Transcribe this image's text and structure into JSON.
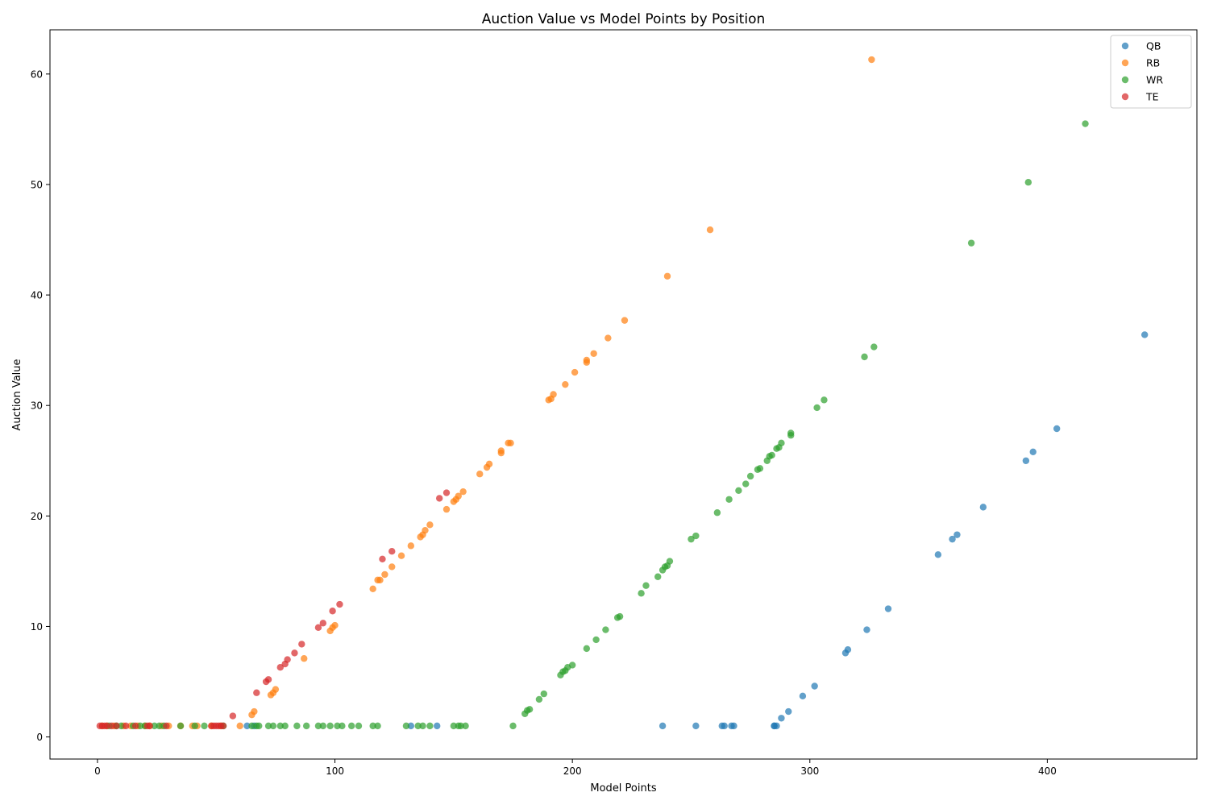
{
  "chart_data": {
    "type": "scatter",
    "title": "Auction Value vs Model Points by Position",
    "xlabel": "Model Points",
    "ylabel": "Auction Value",
    "xlim": [
      -20,
      463
    ],
    "ylim": [
      -2,
      64
    ],
    "xticks": [
      0,
      100,
      200,
      300,
      400
    ],
    "yticks": [
      0,
      10,
      20,
      30,
      40,
      50,
      60
    ],
    "grid": false,
    "legend_position": "top-right",
    "marker": "circle",
    "marker_alpha": 0.7,
    "series": [
      {
        "name": "QB",
        "color": "#1f77b4",
        "points": [
          [
            63,
            1
          ],
          [
            66,
            1
          ],
          [
            132,
            1
          ],
          [
            143,
            1
          ],
          [
            238,
            1
          ],
          [
            252,
            1
          ],
          [
            263,
            1
          ],
          [
            264,
            1
          ],
          [
            267,
            1
          ],
          [
            268,
            1
          ],
          [
            285,
            1
          ],
          [
            285,
            1
          ],
          [
            286,
            1
          ],
          [
            288,
            1.7
          ],
          [
            291,
            2.3
          ],
          [
            297,
            3.7
          ],
          [
            302,
            4.6
          ],
          [
            315,
            7.6
          ],
          [
            316,
            7.9
          ],
          [
            324,
            9.7
          ],
          [
            333,
            11.6
          ],
          [
            354,
            16.5
          ],
          [
            360,
            17.9
          ],
          [
            362,
            18.3
          ],
          [
            373,
            20.8
          ],
          [
            391,
            25.0
          ],
          [
            394,
            25.8
          ],
          [
            404,
            27.9
          ],
          [
            441,
            36.4
          ]
        ]
      },
      {
        "name": "RB",
        "color": "#ff7f0e",
        "points": [
          [
            2,
            1
          ],
          [
            4,
            1
          ],
          [
            7,
            1
          ],
          [
            11,
            1
          ],
          [
            14,
            1
          ],
          [
            17,
            1
          ],
          [
            20,
            1
          ],
          [
            22,
            1
          ],
          [
            27,
            1
          ],
          [
            30,
            1
          ],
          [
            35,
            1
          ],
          [
            40,
            1
          ],
          [
            42,
            1
          ],
          [
            48,
            1
          ],
          [
            52,
            1
          ],
          [
            60,
            1
          ],
          [
            65,
            2.0
          ],
          [
            66,
            2.3
          ],
          [
            73,
            3.8
          ],
          [
            74,
            4.0
          ],
          [
            75,
            4.3
          ],
          [
            87,
            7.1
          ],
          [
            98,
            9.6
          ],
          [
            99,
            9.9
          ],
          [
            100,
            10.1
          ],
          [
            116,
            13.4
          ],
          [
            118,
            14.2
          ],
          [
            119,
            14.2
          ],
          [
            121,
            14.7
          ],
          [
            124,
            15.4
          ],
          [
            128,
            16.4
          ],
          [
            132,
            17.3
          ],
          [
            136,
            18.1
          ],
          [
            137,
            18.3
          ],
          [
            138,
            18.7
          ],
          [
            140,
            19.2
          ],
          [
            147,
            20.6
          ],
          [
            150,
            21.3
          ],
          [
            151,
            21.5
          ],
          [
            152,
            21.8
          ],
          [
            154,
            22.2
          ],
          [
            161,
            23.8
          ],
          [
            164,
            24.4
          ],
          [
            165,
            24.7
          ],
          [
            170,
            25.7
          ],
          [
            170,
            25.9
          ],
          [
            173,
            26.6
          ],
          [
            174,
            26.6
          ],
          [
            190,
            30.5
          ],
          [
            191,
            30.6
          ],
          [
            192,
            31.0
          ],
          [
            197,
            31.9
          ],
          [
            201,
            33.0
          ],
          [
            206,
            33.9
          ],
          [
            206,
            34.1
          ],
          [
            209,
            34.7
          ],
          [
            215,
            36.1
          ],
          [
            222,
            37.7
          ],
          [
            240,
            41.7
          ],
          [
            258,
            45.9
          ],
          [
            326,
            61.3
          ]
        ]
      },
      {
        "name": "WR",
        "color": "#2ca02c",
        "points": [
          [
            5,
            1
          ],
          [
            8,
            1
          ],
          [
            10,
            1
          ],
          [
            15,
            1
          ],
          [
            18,
            1
          ],
          [
            20,
            1
          ],
          [
            24,
            1
          ],
          [
            26,
            1
          ],
          [
            28,
            1
          ],
          [
            35,
            1
          ],
          [
            41,
            1
          ],
          [
            45,
            1
          ],
          [
            53,
            1
          ],
          [
            65,
            1
          ],
          [
            67,
            1
          ],
          [
            68,
            1
          ],
          [
            72,
            1
          ],
          [
            74,
            1
          ],
          [
            77,
            1
          ],
          [
            79,
            1
          ],
          [
            84,
            1
          ],
          [
            88,
            1
          ],
          [
            93,
            1
          ],
          [
            95,
            1
          ],
          [
            98,
            1
          ],
          [
            101,
            1
          ],
          [
            103,
            1
          ],
          [
            107,
            1
          ],
          [
            110,
            1
          ],
          [
            116,
            1
          ],
          [
            118,
            1
          ],
          [
            130,
            1
          ],
          [
            135,
            1
          ],
          [
            137,
            1
          ],
          [
            140,
            1
          ],
          [
            150,
            1
          ],
          [
            152,
            1
          ],
          [
            153,
            1
          ],
          [
            155,
            1
          ],
          [
            175,
            1
          ],
          [
            180,
            2.1
          ],
          [
            181,
            2.4
          ],
          [
            182,
            2.5
          ],
          [
            186,
            3.4
          ],
          [
            188,
            3.9
          ],
          [
            195,
            5.6
          ],
          [
            196,
            5.9
          ],
          [
            197,
            6.0
          ],
          [
            198,
            6.3
          ],
          [
            200,
            6.5
          ],
          [
            206,
            8.0
          ],
          [
            210,
            8.8
          ],
          [
            214,
            9.7
          ],
          [
            219,
            10.8
          ],
          [
            220,
            10.9
          ],
          [
            229,
            13.0
          ],
          [
            231,
            13.7
          ],
          [
            236,
            14.5
          ],
          [
            238,
            15.1
          ],
          [
            239,
            15.4
          ],
          [
            240,
            15.5
          ],
          [
            241,
            15.9
          ],
          [
            250,
            17.9
          ],
          [
            252,
            18.2
          ],
          [
            261,
            20.3
          ],
          [
            266,
            21.5
          ],
          [
            270,
            22.3
          ],
          [
            273,
            22.9
          ],
          [
            275,
            23.6
          ],
          [
            278,
            24.2
          ],
          [
            279,
            24.3
          ],
          [
            282,
            25.0
          ],
          [
            283,
            25.4
          ],
          [
            284,
            25.5
          ],
          [
            286,
            26.1
          ],
          [
            287,
            26.2
          ],
          [
            288,
            26.6
          ],
          [
            292,
            27.3
          ],
          [
            292,
            27.5
          ],
          [
            303,
            29.8
          ],
          [
            306,
            30.5
          ],
          [
            323,
            34.4
          ],
          [
            327,
            35.3
          ],
          [
            368,
            44.7
          ],
          [
            392,
            50.2
          ],
          [
            416,
            55.5
          ]
        ]
      },
      {
        "name": "TE",
        "color": "#d62728",
        "points": [
          [
            1,
            1
          ],
          [
            2,
            1
          ],
          [
            3,
            1
          ],
          [
            4,
            1
          ],
          [
            6,
            1
          ],
          [
            8,
            1
          ],
          [
            12,
            1
          ],
          [
            16,
            1
          ],
          [
            21,
            1
          ],
          [
            22,
            1
          ],
          [
            29,
            1
          ],
          [
            48,
            1
          ],
          [
            49,
            1
          ],
          [
            50,
            1
          ],
          [
            51,
            1
          ],
          [
            52,
            1
          ],
          [
            53,
            1
          ],
          [
            57,
            1.9
          ],
          [
            67,
            4.0
          ],
          [
            71,
            5.0
          ],
          [
            72,
            5.2
          ],
          [
            77,
            6.3
          ],
          [
            79,
            6.6
          ],
          [
            80,
            7.0
          ],
          [
            83,
            7.6
          ],
          [
            86,
            8.4
          ],
          [
            93,
            9.9
          ],
          [
            95,
            10.3
          ],
          [
            99,
            11.4
          ],
          [
            102,
            12.0
          ],
          [
            120,
            16.1
          ],
          [
            124,
            16.8
          ],
          [
            144,
            21.6
          ],
          [
            147,
            22.1
          ]
        ]
      }
    ]
  }
}
